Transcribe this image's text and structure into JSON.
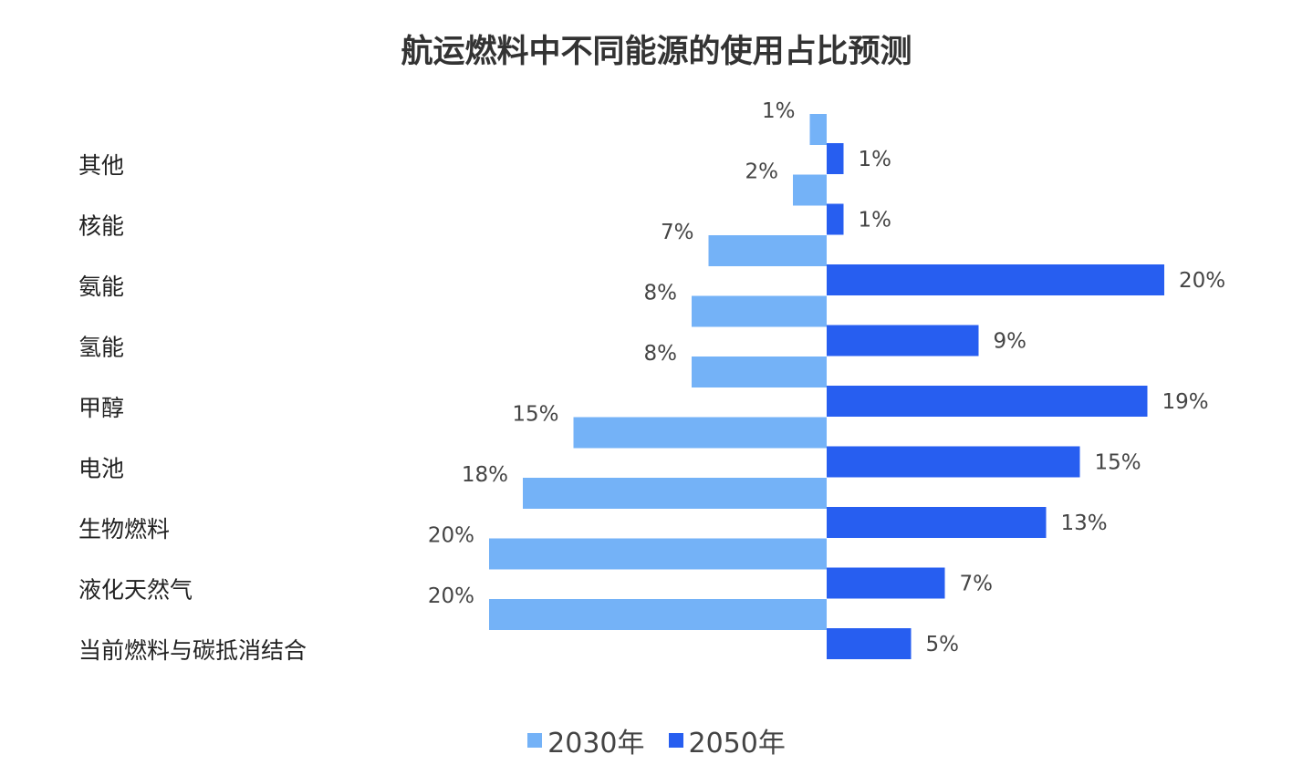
{
  "chart_data": {
    "type": "bar",
    "orientation": "horizontal-diverging",
    "title": "航运燃料中不同能源的使用占比预测",
    "categories": [
      "其他",
      "核能",
      "氨能",
      "氢能",
      "甲醇",
      "电池",
      "生物燃料",
      "液化天然气",
      "当前燃料与碳抵消结合"
    ],
    "series": [
      {
        "name": "2030年",
        "color": "#74b2f7",
        "values": [
          1,
          2,
          7,
          8,
          8,
          15,
          18,
          20,
          20
        ]
      },
      {
        "name": "2050年",
        "color": "#275ef0",
        "values": [
          1,
          1,
          20,
          9,
          19,
          15,
          13,
          7,
          5
        ]
      }
    ],
    "value_suffix": "%",
    "legend_position": "bottom",
    "grid": false
  }
}
